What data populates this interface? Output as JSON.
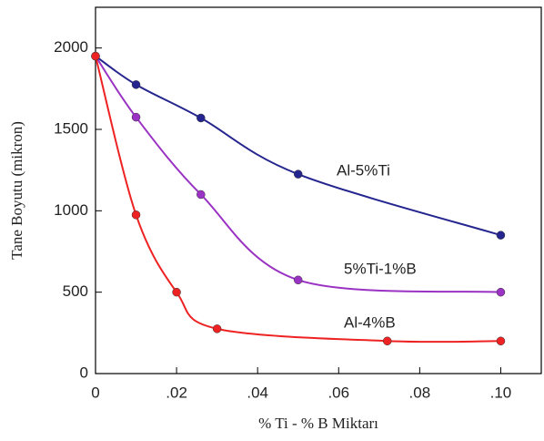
{
  "chart_data": {
    "type": "line",
    "xlabel": "% Ti - % B Miktarı",
    "ylabel": "Tane Boyutu (mikron)",
    "xlim": [
      0,
      0.11
    ],
    "ylim": [
      0,
      2250
    ],
    "xticks": [
      0,
      {
        "value": 0.02,
        "label": ".02"
      },
      {
        "value": 0.04,
        "label": ".04"
      },
      {
        "value": 0.06,
        "label": ".06"
      },
      {
        "value": 0.08,
        "label": ".08"
      },
      {
        "value": 0.1,
        "label": ".10"
      }
    ],
    "yticks": [
      0,
      500,
      1000,
      1500,
      2000
    ],
    "series": [
      {
        "name": "Al-5%Ti",
        "color": "#25258f",
        "x": [
          0,
          0.01,
          0.026,
          0.05,
          0.1
        ],
        "values": [
          1950,
          1775,
          1570,
          1225,
          850
        ]
      },
      {
        "name": "5%Ti-1%B",
        "color": "#9a32c4",
        "x": [
          0,
          0.01,
          0.026,
          0.05,
          0.1
        ],
        "values": [
          1950,
          1575,
          1100,
          575,
          500
        ]
      },
      {
        "name": "Al-4%B",
        "color": "#ee2222",
        "x": [
          0,
          0.01,
          0.02,
          0.03,
          0.072,
          0.1
        ],
        "values": [
          1950,
          975,
          500,
          275,
          200,
          200
        ]
      }
    ]
  }
}
